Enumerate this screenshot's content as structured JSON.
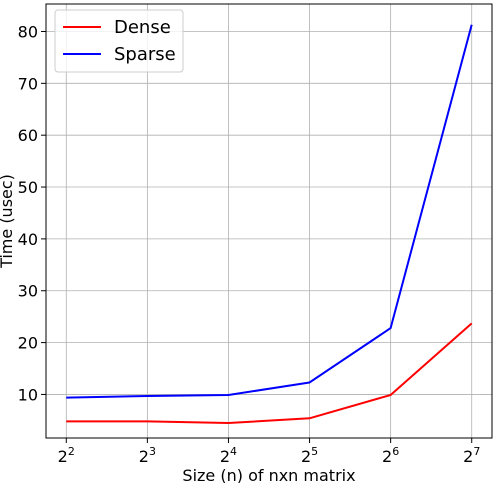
{
  "chart_data": {
    "type": "line",
    "xlabel": "Size (n) of nxn matrix",
    "ylabel": "Time (usec)",
    "x_scale": "log2",
    "x": [
      4,
      8,
      16,
      32,
      64,
      128
    ],
    "x_tick_labels": [
      {
        "base": "2",
        "exp": "2"
      },
      {
        "base": "2",
        "exp": "3"
      },
      {
        "base": "2",
        "exp": "4"
      },
      {
        "base": "2",
        "exp": "5"
      },
      {
        "base": "2",
        "exp": "6"
      },
      {
        "base": "2",
        "exp": "7"
      }
    ],
    "y_ticks": [
      10,
      20,
      30,
      40,
      50,
      60,
      70,
      80
    ],
    "ylim": [
      1.6,
      85.3
    ],
    "grid": true,
    "legend_position": "top-left",
    "series": [
      {
        "name": "Dense",
        "color": "#ff0000",
        "values": [
          4.8,
          4.8,
          4.5,
          5.4,
          9.9,
          23.7
        ]
      },
      {
        "name": "Sparse",
        "color": "#0000ff",
        "values": [
          9.4,
          9.7,
          9.9,
          12.3,
          22.8,
          81.3
        ]
      }
    ]
  }
}
